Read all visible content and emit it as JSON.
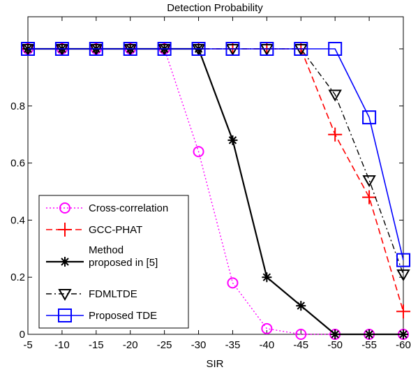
{
  "chart_data": {
    "type": "line",
    "title": "Detection Probability",
    "xlabel": "SIR",
    "ylabel": "",
    "x": [
      -5,
      -10,
      -15,
      -20,
      -25,
      -30,
      -35,
      -40,
      -45,
      -50,
      -55,
      -60
    ],
    "x_tick_labels": [
      "-5",
      "-10",
      "-15",
      "-20",
      "-25",
      "-30",
      "-35",
      "-40",
      "-45",
      "-50",
      "-55",
      "-60"
    ],
    "y_ticks": [
      0,
      0.2,
      0.4,
      0.6,
      0.8
    ],
    "y_tick_labels": [
      "0",
      "0.2",
      "0.4",
      "0.6",
      "0.8"
    ],
    "xlim": [
      -5,
      -60
    ],
    "ylim": [
      0,
      1.1
    ],
    "grid": false,
    "legend_position": "bottom-left",
    "series": [
      {
        "name": "Cross-correlation",
        "color": "#ff00ff",
        "line": "dotted",
        "marker": "circle",
        "values": [
          1,
          1,
          1,
          1,
          1,
          0.64,
          0.18,
          0.02,
          0,
          0,
          0,
          0
        ]
      },
      {
        "name": "GCC-PHAT",
        "color": "#ff0000",
        "line": "dashed",
        "marker": "plus",
        "values": [
          1,
          1,
          1,
          1,
          1,
          1,
          1,
          1,
          1,
          0.7,
          0.48,
          0.08
        ]
      },
      {
        "name": "Method proposed in [5]",
        "name_lines": [
          "Method",
          "proposed in [5]"
        ],
        "color": "#000000",
        "line": "solid",
        "marker": "asterisk",
        "values": [
          1,
          1,
          1,
          1,
          1,
          1,
          0.68,
          0.2,
          0.1,
          0,
          0,
          0
        ]
      },
      {
        "name": "FDMLTDE",
        "color": "#000000",
        "line": "dashdot",
        "marker": "triangle-down",
        "values": [
          1,
          1,
          1,
          1,
          1,
          1,
          1,
          1,
          1,
          0.84,
          0.54,
          0.21
        ]
      },
      {
        "name": "Proposed TDE",
        "color": "#0000ff",
        "line": "solid",
        "marker": "square",
        "values": [
          1,
          1,
          1,
          1,
          1,
          1,
          1,
          1,
          1,
          1,
          0.76,
          0.26
        ]
      }
    ]
  }
}
